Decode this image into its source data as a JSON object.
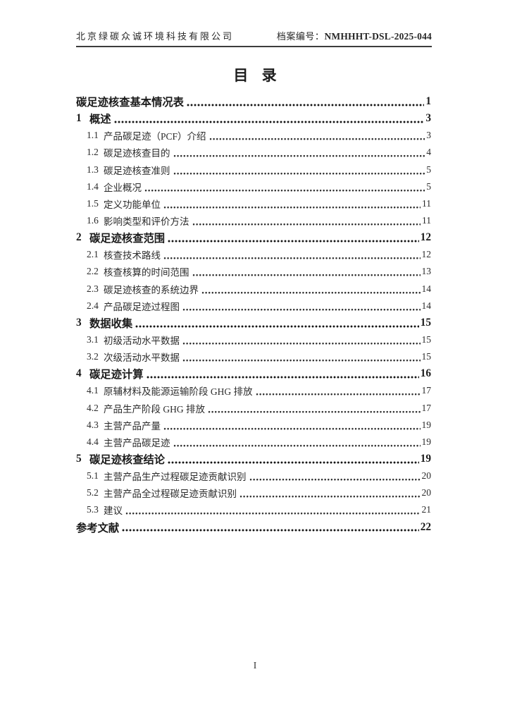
{
  "header": {
    "company": "北京绿碳众诚环境科技有限公司",
    "file_no_label": "档案编号：",
    "file_no": "NMHHHT-DSL-2025-044"
  },
  "title": "目 录",
  "toc": {
    "entries": [
      {
        "num": "",
        "label": "碳足迹核查基本情况表",
        "page": "1"
      },
      {
        "num": "1",
        "label": "概述",
        "page": "3"
      },
      {
        "num": "1.1",
        "label": "产品碳足迹（PCF）介绍",
        "page": "3"
      },
      {
        "num": "1.2",
        "label": "碳足迹核查目的",
        "page": "4"
      },
      {
        "num": "1.3",
        "label": "碳足迹核查准则",
        "page": "5"
      },
      {
        "num": "1.4",
        "label": "企业概况",
        "page": "5"
      },
      {
        "num": "1.5",
        "label": "定义功能单位",
        "page": "11"
      },
      {
        "num": "1.6",
        "label": "影响类型和评价方法",
        "page": "11"
      },
      {
        "num": "2",
        "label": "碳足迹核查范围",
        "page": "12"
      },
      {
        "num": "2.1",
        "label": "核查技术路线",
        "page": "12"
      },
      {
        "num": "2.2",
        "label": "核查核算的时间范围",
        "page": "13"
      },
      {
        "num": "2.3",
        "label": "碳足迹核查的系统边界",
        "page": "14"
      },
      {
        "num": "2.4",
        "label": "产品碳足迹过程图",
        "page": "14"
      },
      {
        "num": "3",
        "label": "数据收集",
        "page": "15"
      },
      {
        "num": "3.1",
        "label": "初级活动水平数据",
        "page": "15"
      },
      {
        "num": "3.2",
        "label": "次级活动水平数据",
        "page": "15"
      },
      {
        "num": "4",
        "label": "碳足迹计算",
        "page": "16"
      },
      {
        "num": "4.1",
        "label": "原辅材料及能源运输阶段 GHG 排放",
        "page": "17"
      },
      {
        "num": "4.2",
        "label": "产品生产阶段 GHG 排放",
        "page": "17"
      },
      {
        "num": "4.3",
        "label": "主营产品产量",
        "page": "19"
      },
      {
        "num": "4.4",
        "label": "主营产品碳足迹",
        "page": "19"
      },
      {
        "num": "5",
        "label": "碳足迹核查结论",
        "page": "19"
      },
      {
        "num": "5.1",
        "label": "主营产品生产过程碳足迹贡献识别",
        "page": "20"
      },
      {
        "num": "5.2",
        "label": "主营产品全过程碳足迹贡献识别",
        "page": "20"
      },
      {
        "num": "5.3",
        "label": "建议",
        "page": "21"
      },
      {
        "num": "",
        "label": "参考文献",
        "page": "22"
      }
    ]
  },
  "footer": {
    "page_number": "I"
  }
}
